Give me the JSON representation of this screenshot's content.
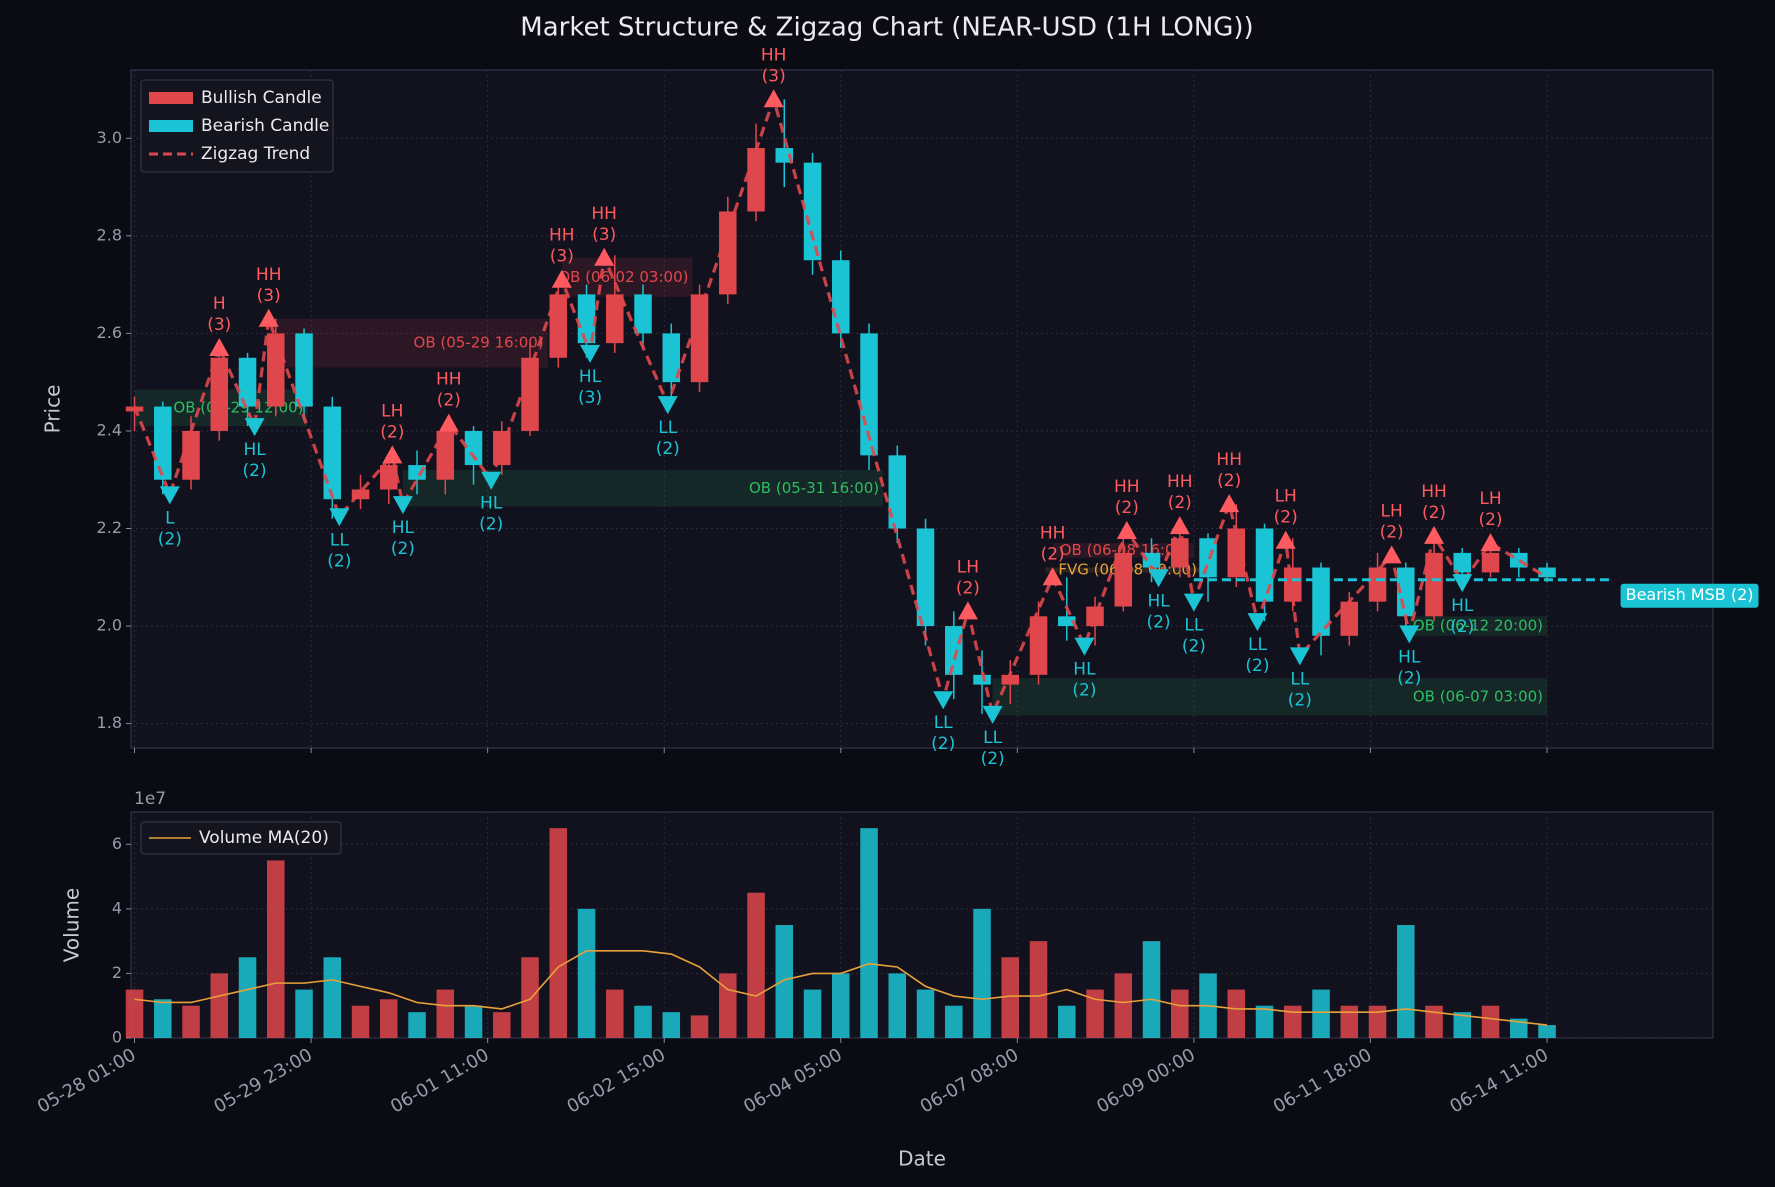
{
  "chart_data": [
    {
      "type": "candlestick",
      "title": "Market Structure & Zigzag Chart (NEAR-USD (1H LONG))",
      "ylabel": "Price",
      "xlim": [
        -1,
        447
      ],
      "ylim": [
        1.75,
        3.14
      ],
      "yticks": [
        1.8,
        {
          "value": 2,
          "label": "2.0"
        },
        2.2,
        2.4,
        2.6,
        2.8,
        {
          "value": 3,
          "label": "3.0"
        }
      ],
      "grid": true,
      "legend": "upper left",
      "candles": {
        "up": {
          "name": "Bullish Candle",
          "color": "#e0474c"
        },
        "down": {
          "name": "Bearish Candle",
          "color": "#1bc4d4"
        }
      },
      "x": [
        0,
        8,
        16,
        24,
        32,
        40,
        48,
        56,
        64,
        72,
        80,
        88,
        96,
        104,
        112,
        120,
        128,
        136,
        144,
        152,
        160,
        168,
        176,
        184,
        192,
        200,
        208,
        216,
        224,
        232,
        240,
        248,
        256,
        264,
        272,
        280,
        288,
        296,
        304,
        312,
        320,
        328,
        336,
        344,
        352,
        360,
        368,
        376,
        384,
        392,
        400
      ],
      "open": [
        2.44,
        2.45,
        2.3,
        2.4,
        2.55,
        2.45,
        2.6,
        2.45,
        2.26,
        2.28,
        2.33,
        2.3,
        2.4,
        2.33,
        2.4,
        2.55,
        2.68,
        2.58,
        2.68,
        2.6,
        2.5,
        2.68,
        2.85,
        2.98,
        2.95,
        2.75,
        2.6,
        2.35,
        2.2,
        2.0,
        1.9,
        1.88,
        1.9,
        2.02,
        2.0,
        2.04,
        2.15,
        2.12,
        2.18,
        2.1,
        2.2,
        2.05,
        2.12,
        1.98,
        2.05,
        2.12,
        2.02,
        2.15,
        2.11,
        2.15,
        2.12
      ],
      "high": [
        2.47,
        2.46,
        2.43,
        2.57,
        2.56,
        2.63,
        2.61,
        2.47,
        2.31,
        2.35,
        2.36,
        2.42,
        2.41,
        2.42,
        2.58,
        2.71,
        2.7,
        2.76,
        2.7,
        2.62,
        2.7,
        2.88,
        3.03,
        3.08,
        2.97,
        2.77,
        2.62,
        2.37,
        2.22,
        2.03,
        1.95,
        1.93,
        2.05,
        2.1,
        2.06,
        2.2,
        2.18,
        2.21,
        2.19,
        2.25,
        2.21,
        2.18,
        2.13,
        2.07,
        2.15,
        2.13,
        2.19,
        2.16,
        2.17,
        2.16,
        2.13
      ],
      "low": [
        2.4,
        2.27,
        2.28,
        2.38,
        2.41,
        2.43,
        2.42,
        2.22,
        2.24,
        2.25,
        2.27,
        2.27,
        2.29,
        2.31,
        2.39,
        2.53,
        2.55,
        2.56,
        2.57,
        2.45,
        2.48,
        2.66,
        2.83,
        2.9,
        2.72,
        2.57,
        2.32,
        2.17,
        1.96,
        1.85,
        1.82,
        1.84,
        1.88,
        1.97,
        1.96,
        2.03,
        2.09,
        2.1,
        2.05,
        2.08,
        2.01,
        2.03,
        1.94,
        1.96,
        2.03,
        1.99,
        2.01,
        2.09,
        2.1,
        2.1,
        2.09
      ],
      "close": [
        2.45,
        2.3,
        2.4,
        2.55,
        2.45,
        2.6,
        2.45,
        2.26,
        2.28,
        2.33,
        2.3,
        2.4,
        2.33,
        2.4,
        2.55,
        2.68,
        2.58,
        2.68,
        2.6,
        2.5,
        2.68,
        2.85,
        2.98,
        2.95,
        2.75,
        2.6,
        2.35,
        2.2,
        2.0,
        1.9,
        1.88,
        1.9,
        2.02,
        2.0,
        2.04,
        2.15,
        2.12,
        2.18,
        2.1,
        2.2,
        2.05,
        2.12,
        1.98,
        2.05,
        2.12,
        2.02,
        2.15,
        2.11,
        2.15,
        2.12,
        2.1
      ],
      "zigzag": {
        "name": "Zigzag Trend",
        "color": "#e0474c",
        "x": [
          0,
          10,
          24,
          34,
          38,
          58,
          73,
          76,
          89,
          101,
          121,
          129,
          133,
          151,
          181,
          229,
          236,
          243,
          260,
          269,
          281,
          290,
          296,
          300,
          310,
          318,
          326,
          330,
          356,
          361,
          368,
          376,
          384,
          400
        ],
        "y": [
          2.45,
          2.27,
          2.57,
          2.41,
          2.63,
          2.225,
          2.35,
          2.25,
          2.415,
          2.3,
          2.71,
          2.56,
          2.755,
          2.455,
          3.08,
          1.85,
          2.03,
          1.82,
          2.1,
          1.96,
          2.195,
          2.1,
          2.205,
          2.05,
          2.25,
          2.01,
          2.175,
          1.94,
          2.145,
          1.985,
          2.185,
          2.09,
          2.17,
          2.1
        ]
      },
      "pivots": [
        {
          "x": 10,
          "y": 2.27,
          "kind": "L",
          "strength": "(2)",
          "dir": "down"
        },
        {
          "x": 24,
          "y": 2.57,
          "kind": "H",
          "strength": "(3)",
          "dir": "up"
        },
        {
          "x": 34,
          "y": 2.41,
          "kind": "HL",
          "strength": "(2)",
          "dir": "down"
        },
        {
          "x": 38,
          "y": 2.63,
          "kind": "HH",
          "strength": "(3)",
          "dir": "up"
        },
        {
          "x": 58,
          "y": 2.225,
          "kind": "LL",
          "strength": "(2)",
          "dir": "down"
        },
        {
          "x": 73,
          "y": 2.35,
          "kind": "LH",
          "strength": "(2)",
          "dir": "up"
        },
        {
          "x": 76,
          "y": 2.25,
          "kind": "HL",
          "strength": "(2)",
          "dir": "down"
        },
        {
          "x": 89,
          "y": 2.415,
          "kind": "HH",
          "strength": "(2)",
          "dir": "up"
        },
        {
          "x": 101,
          "y": 2.3,
          "kind": "HL",
          "strength": "(2)",
          "dir": "down"
        },
        {
          "x": 121,
          "y": 2.71,
          "kind": "HH",
          "strength": "(3)",
          "dir": "up"
        },
        {
          "x": 129,
          "y": 2.56,
          "kind": "HL",
          "strength": "(3)",
          "dir": "down"
        },
        {
          "x": 133,
          "y": 2.755,
          "kind": "HH",
          "strength": "(3)",
          "dir": "up"
        },
        {
          "x": 151,
          "y": 2.455,
          "kind": "LL",
          "strength": "(2)",
          "dir": "down"
        },
        {
          "x": 181,
          "y": 3.08,
          "kind": "HH",
          "strength": "(3)",
          "dir": "up"
        },
        {
          "x": 229,
          "y": 1.85,
          "kind": "LL",
          "strength": "(2)",
          "dir": "down"
        },
        {
          "x": 236,
          "y": 2.03,
          "kind": "LH",
          "strength": "(2)",
          "dir": "up"
        },
        {
          "x": 243,
          "y": 1.82,
          "kind": "LL",
          "strength": "(2)",
          "dir": "down"
        },
        {
          "x": 260,
          "y": 2.1,
          "kind": "HH",
          "strength": "(2)",
          "dir": "up"
        },
        {
          "x": 269,
          "y": 1.96,
          "kind": "HL",
          "strength": "(2)",
          "dir": "down"
        },
        {
          "x": 281,
          "y": 2.195,
          "kind": "HH",
          "strength": "(2)",
          "dir": "up"
        },
        {
          "x": 290,
          "y": 2.1,
          "kind": "HL",
          "strength": "(2)",
          "dir": "down"
        },
        {
          "x": 296,
          "y": 2.205,
          "kind": "HH",
          "strength": "(2)",
          "dir": "up"
        },
        {
          "x": 300,
          "y": 2.05,
          "kind": "LL",
          "strength": "(2)",
          "dir": "down"
        },
        {
          "x": 310,
          "y": 2.25,
          "kind": "HH",
          "strength": "(2)",
          "dir": "up"
        },
        {
          "x": 318,
          "y": 2.01,
          "kind": "LL",
          "strength": "(2)",
          "dir": "down"
        },
        {
          "x": 326,
          "y": 2.175,
          "kind": "LH",
          "strength": "(2)",
          "dir": "up"
        },
        {
          "x": 330,
          "y": 1.94,
          "kind": "LL",
          "strength": "(2)",
          "dir": "down"
        },
        {
          "x": 356,
          "y": 2.145,
          "kind": "LH",
          "strength": "(2)",
          "dir": "up"
        },
        {
          "x": 361,
          "y": 1.985,
          "kind": "HL",
          "strength": "(2)",
          "dir": "down"
        },
        {
          "x": 368,
          "y": 2.185,
          "kind": "HH",
          "strength": "(2)",
          "dir": "up"
        },
        {
          "x": 376,
          "y": 2.09,
          "kind": "HL",
          "strength": "(2)",
          "dir": "down"
        },
        {
          "x": 384,
          "y": 2.17,
          "kind": "LH",
          "strength": "(2)",
          "dir": "up"
        }
      ],
      "zones": [
        {
          "label": "OB (05-29 12:00)",
          "x": [
            0,
            49
          ],
          "y": [
            2.41,
            2.485
          ],
          "color": "#2ebd63"
        },
        {
          "label": "OB (05-29 16:00)",
          "x": [
            38,
            117
          ],
          "y": [
            2.53,
            2.63
          ],
          "color": "#e0474c"
        },
        {
          "label": "OB (05-31 16:00)",
          "x": [
            76,
            212
          ],
          "y": [
            2.245,
            2.32
          ],
          "color": "#2ebd63"
        },
        {
          "label": "OB (06-02 03:00)",
          "x": [
            121,
            158
          ],
          "y": [
            2.675,
            2.755
          ],
          "color": "#e0474c"
        },
        {
          "label": "OB (06-08 16:00)",
          "x": [
            260,
            300
          ],
          "y": [
            2.14,
            2.17
          ],
          "color": "#e0474c"
        },
        {
          "label": "FVG (06-08 00:00)",
          "x": [
            258,
            302
          ],
          "y": [
            2.11,
            2.12
          ],
          "color": "#e8a13a"
        },
        {
          "label": "OB (06-12 20:00)",
          "x": [
            361,
            400
          ],
          "y": [
            1.98,
            2.02
          ],
          "color": "#2ebd63"
        },
        {
          "label": "OB (06-07 03:00)",
          "x": [
            243,
            400
          ],
          "y": [
            1.817,
            1.893
          ],
          "color": "#2ebd63"
        }
      ],
      "msb": {
        "label": "Bearish MSB (2)",
        "y": 2.095,
        "x": [
          300,
          418
        ],
        "color": "#1bc4d4"
      }
    },
    {
      "type": "bar",
      "ylabel": "Volume",
      "xlabel": "Date",
      "offset_label": "1e7",
      "xlim": [
        -1,
        447
      ],
      "ylim": [
        0,
        7
      ],
      "yticks": [
        0,
        2,
        4,
        6
      ],
      "grid": true,
      "legend": "upper left",
      "xticks": [
        {
          "value": 0,
          "label": "05-28 01:00"
        },
        {
          "value": 50,
          "label": "05-29 23:00"
        },
        {
          "value": 100,
          "label": "06-01 11:00"
        },
        {
          "value": 150,
          "label": "06-02 15:00"
        },
        {
          "value": 200,
          "label": "06-04 05:00"
        },
        {
          "value": 250,
          "label": "06-07 08:00"
        },
        {
          "value": 300,
          "label": "06-09 00:00"
        },
        {
          "value": 350,
          "label": "06-11 18:00"
        },
        {
          "value": 400,
          "label": "06-14 11:00"
        }
      ],
      "values": [
        1.5,
        1.2,
        1.0,
        2.0,
        2.5,
        5.5,
        1.5,
        2.5,
        1.0,
        1.2,
        0.8,
        1.5,
        1.0,
        0.8,
        2.5,
        6.5,
        4.0,
        1.5,
        1.0,
        0.8,
        0.7,
        2.0,
        4.5,
        3.5,
        1.5,
        2.0,
        6.5,
        2.0,
        1.5,
        1.0,
        4.0,
        2.5,
        3.0,
        1.0,
        1.5,
        2.0,
        3.0,
        1.5,
        2.0,
        1.5,
        1.0,
        1.0,
        1.5,
        1.0,
        1.0,
        3.5,
        1.0,
        0.8,
        1.0,
        0.6,
        0.4
      ],
      "ma": {
        "name": "Volume MA(20)",
        "color": "#e8a13a",
        "values": [
          1.2,
          1.1,
          1.1,
          1.3,
          1.5,
          1.7,
          1.7,
          1.8,
          1.6,
          1.4,
          1.1,
          1.0,
          1.0,
          0.9,
          1.2,
          2.2,
          2.7,
          2.7,
          2.7,
          2.6,
          2.2,
          1.5,
          1.3,
          1.8,
          2.0,
          2.0,
          2.3,
          2.2,
          1.6,
          1.3,
          1.2,
          1.3,
          1.3,
          1.5,
          1.2,
          1.1,
          1.2,
          1.0,
          1.0,
          0.9,
          0.9,
          0.8,
          0.8,
          0.8,
          0.8,
          0.9,
          0.8,
          0.7,
          0.6,
          0.5,
          0.4
        ]
      }
    }
  ]
}
